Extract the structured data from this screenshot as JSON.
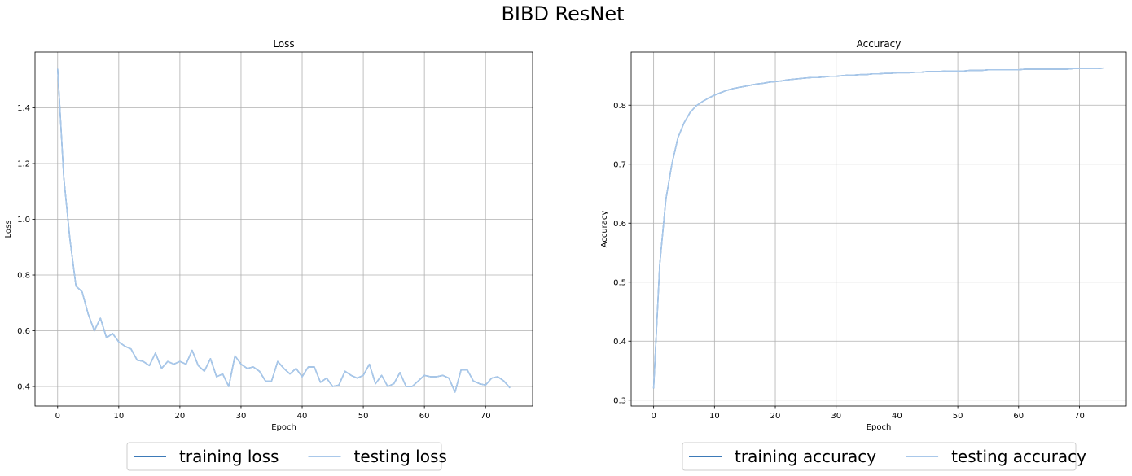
{
  "figure": {
    "title": "BIBD ResNet"
  },
  "colors": {
    "training": "#3d7ab8",
    "testing": "#a9c8ea",
    "grid": "#b0b0b0",
    "legend_border": "#cccccc"
  },
  "chart_data": [
    {
      "type": "line",
      "title": "Loss",
      "xlabel": "Epoch",
      "ylabel": "Loss",
      "xlim": [
        -3.7,
        77.7
      ],
      "ylim": [
        0.33,
        1.6
      ],
      "xticks": [
        0,
        10,
        20,
        30,
        40,
        50,
        60,
        70
      ],
      "yticks": [
        0.4,
        0.6,
        0.8,
        1.0,
        1.2,
        1.4
      ],
      "ytick_labels": [
        "0.4",
        "0.6",
        "0.8",
        "1.0",
        "1.2",
        "1.4"
      ],
      "grid": true,
      "legend_position": "below",
      "x": [
        0,
        1,
        2,
        3,
        4,
        5,
        6,
        7,
        8,
        9,
        10,
        11,
        12,
        13,
        14,
        15,
        16,
        17,
        18,
        19,
        20,
        21,
        22,
        23,
        24,
        25,
        26,
        27,
        28,
        29,
        30,
        31,
        32,
        33,
        34,
        35,
        36,
        37,
        38,
        39,
        40,
        41,
        42,
        43,
        44,
        45,
        46,
        47,
        48,
        49,
        50,
        51,
        52,
        53,
        54,
        55,
        56,
        57,
        58,
        59,
        60,
        61,
        62,
        63,
        64,
        65,
        66,
        67,
        68,
        69,
        70,
        71,
        72,
        73,
        74
      ],
      "series": [
        {
          "name": "training loss",
          "values": [
            1.54,
            1.15,
            0.93,
            0.76,
            0.74,
            0.66,
            0.6,
            0.645,
            0.575,
            0.59,
            0.56,
            0.545,
            0.535,
            0.495,
            0.49,
            0.475,
            0.52,
            0.465,
            0.49,
            0.48,
            0.49,
            0.48,
            0.53,
            0.475,
            0.455,
            0.5,
            0.435,
            0.445,
            0.4,
            0.51,
            0.48,
            0.465,
            0.47,
            0.455,
            0.42,
            0.42,
            0.49,
            0.465,
            0.445,
            0.465,
            0.435,
            0.47,
            0.47,
            0.415,
            0.43,
            0.4,
            0.405,
            0.455,
            0.44,
            0.43,
            0.44,
            0.48,
            0.41,
            0.44,
            0.4,
            0.41,
            0.45,
            0.4,
            0.4,
            0.42,
            0.44,
            0.435,
            0.435,
            0.44,
            0.43,
            0.38,
            0.46,
            0.46,
            0.42,
            0.41,
            0.405,
            0.43,
            0.435,
            0.42,
            0.395
          ]
        },
        {
          "name": "testing loss",
          "values": [
            1.54,
            1.15,
            0.93,
            0.76,
            0.74,
            0.66,
            0.6,
            0.645,
            0.575,
            0.59,
            0.56,
            0.545,
            0.535,
            0.495,
            0.49,
            0.475,
            0.52,
            0.465,
            0.49,
            0.48,
            0.49,
            0.48,
            0.53,
            0.475,
            0.455,
            0.5,
            0.435,
            0.445,
            0.4,
            0.51,
            0.48,
            0.465,
            0.47,
            0.455,
            0.42,
            0.42,
            0.49,
            0.465,
            0.445,
            0.465,
            0.435,
            0.47,
            0.47,
            0.415,
            0.43,
            0.4,
            0.405,
            0.455,
            0.44,
            0.43,
            0.44,
            0.48,
            0.41,
            0.44,
            0.4,
            0.41,
            0.45,
            0.4,
            0.4,
            0.42,
            0.44,
            0.435,
            0.435,
            0.44,
            0.43,
            0.38,
            0.46,
            0.46,
            0.42,
            0.41,
            0.405,
            0.43,
            0.435,
            0.42,
            0.395
          ]
        }
      ]
    },
    {
      "type": "line",
      "title": "Accuracy",
      "xlabel": "Epoch",
      "ylabel": "Accuracy",
      "xlim": [
        -3.7,
        77.7
      ],
      "ylim": [
        0.29,
        0.89
      ],
      "xticks": [
        0,
        10,
        20,
        30,
        40,
        50,
        60,
        70
      ],
      "yticks": [
        0.3,
        0.4,
        0.5,
        0.6,
        0.7,
        0.8
      ],
      "ytick_labels": [
        "0.3",
        "0.4",
        "0.5",
        "0.6",
        "0.7",
        "0.8"
      ],
      "grid": true,
      "legend_position": "below",
      "x": [
        0,
        1,
        2,
        3,
        4,
        5,
        6,
        7,
        8,
        9,
        10,
        11,
        12,
        13,
        14,
        15,
        16,
        17,
        18,
        19,
        20,
        21,
        22,
        23,
        24,
        25,
        26,
        27,
        28,
        29,
        30,
        31,
        32,
        33,
        34,
        35,
        36,
        37,
        38,
        39,
        40,
        41,
        42,
        43,
        44,
        45,
        46,
        47,
        48,
        49,
        50,
        51,
        52,
        53,
        54,
        55,
        56,
        57,
        58,
        59,
        60,
        61,
        62,
        63,
        64,
        65,
        66,
        67,
        68,
        69,
        70,
        71,
        72,
        73,
        74
      ],
      "series": [
        {
          "name": "training accuracy",
          "values": [
            0.32,
            0.53,
            0.64,
            0.7,
            0.745,
            0.77,
            0.788,
            0.799,
            0.806,
            0.812,
            0.817,
            0.821,
            0.825,
            0.828,
            0.83,
            0.832,
            0.834,
            0.836,
            0.837,
            0.839,
            0.84,
            0.841,
            0.843,
            0.844,
            0.845,
            0.846,
            0.847,
            0.847,
            0.848,
            0.849,
            0.849,
            0.85,
            0.851,
            0.851,
            0.852,
            0.852,
            0.853,
            0.853,
            0.854,
            0.854,
            0.855,
            0.855,
            0.855,
            0.856,
            0.856,
            0.857,
            0.857,
            0.857,
            0.858,
            0.858,
            0.858,
            0.858,
            0.859,
            0.859,
            0.859,
            0.86,
            0.86,
            0.86,
            0.86,
            0.86,
            0.86,
            0.861,
            0.861,
            0.861,
            0.861,
            0.861,
            0.861,
            0.861,
            0.861,
            0.862,
            0.862,
            0.862,
            0.862,
            0.862,
            0.863
          ]
        },
        {
          "name": "testing accuracy",
          "values": [
            0.32,
            0.53,
            0.64,
            0.7,
            0.745,
            0.77,
            0.788,
            0.799,
            0.806,
            0.812,
            0.817,
            0.821,
            0.825,
            0.828,
            0.83,
            0.832,
            0.834,
            0.836,
            0.837,
            0.839,
            0.84,
            0.841,
            0.843,
            0.844,
            0.845,
            0.846,
            0.847,
            0.847,
            0.848,
            0.849,
            0.849,
            0.85,
            0.851,
            0.851,
            0.852,
            0.852,
            0.853,
            0.853,
            0.854,
            0.854,
            0.855,
            0.855,
            0.855,
            0.856,
            0.856,
            0.857,
            0.857,
            0.857,
            0.858,
            0.858,
            0.858,
            0.858,
            0.859,
            0.859,
            0.859,
            0.86,
            0.86,
            0.86,
            0.86,
            0.86,
            0.86,
            0.861,
            0.861,
            0.861,
            0.861,
            0.861,
            0.861,
            0.861,
            0.861,
            0.862,
            0.862,
            0.862,
            0.862,
            0.862,
            0.863
          ]
        }
      ]
    }
  ]
}
